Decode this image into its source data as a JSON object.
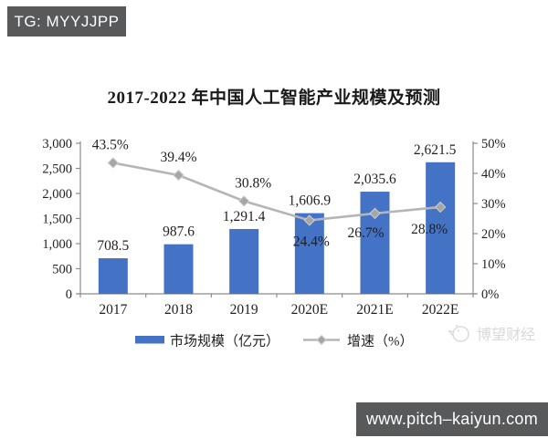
{
  "badge": {
    "text": "TG: MYYJJPP"
  },
  "footer": {
    "url": "www.pitch–kaiyun.com"
  },
  "watermark": {
    "text": "博望财经",
    "logo": "bird-icon"
  },
  "chart_data": {
    "type": "bar",
    "subtype": "bar+line combo, dual axis",
    "title": "2017-2022 年中国人工智能产业规模及预测",
    "categories": [
      "2017",
      "2018",
      "2019",
      "2020E",
      "2021E",
      "2022E"
    ],
    "series": [
      {
        "name": "市场规模（亿元）",
        "type": "bar",
        "axis": "left",
        "values": [
          708.5,
          987.6,
          1291.4,
          1606.9,
          2035.6,
          2621.5
        ],
        "labels": [
          "708.5",
          "987.6",
          "1,291.4",
          "1,606.9",
          "2,035.6",
          "2,621.5"
        ],
        "color": "#4472c4"
      },
      {
        "name": "增速（%）",
        "type": "line",
        "axis": "right",
        "values": [
          43.5,
          39.4,
          30.8,
          24.4,
          26.7,
          28.8
        ],
        "labels": [
          "43.5%",
          "39.4%",
          "30.8%",
          "24.4%",
          "26.7%",
          "28.8%"
        ],
        "color": "#b5b5b5",
        "marker_color": "#a6a6a6",
        "marker": "diamond"
      }
    ],
    "left_axis": {
      "min": 0,
      "max": 3000,
      "step": 500,
      "tick_labels": [
        "0",
        "500",
        "1,000",
        "1,500",
        "2,000",
        "2,500",
        "3,000"
      ]
    },
    "right_axis": {
      "min": 0,
      "max": 50,
      "step": 10,
      "tick_labels": [
        "0%",
        "10%",
        "20%",
        "30%",
        "40%",
        "50%"
      ]
    },
    "grid": "off",
    "legend_position": "bottom"
  }
}
